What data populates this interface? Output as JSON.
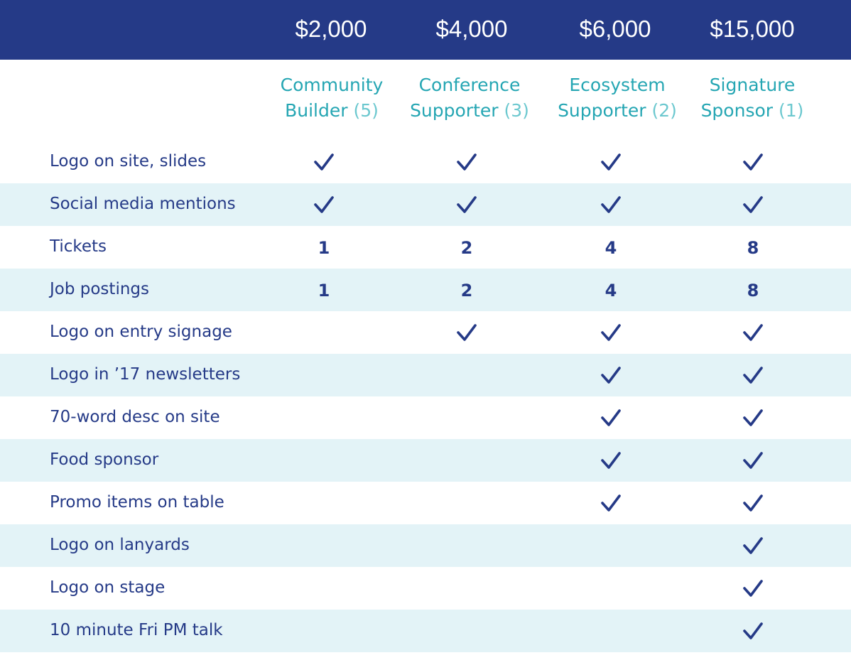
{
  "header": {
    "prices": [
      "$2,000",
      "$4,000",
      "$6,000",
      "$15,000"
    ],
    "tiers": [
      {
        "line1": "Community",
        "line2": "Builder",
        "count": "(5)"
      },
      {
        "line1": "Conference",
        "line2": "Supporter",
        "count": "(3)"
      },
      {
        "line1": "Ecosystem",
        "line2": "Supporter",
        "count": "(2)"
      },
      {
        "line1": "Signature",
        "line2": "Sponsor",
        "count": "(1)"
      }
    ]
  },
  "rows": [
    {
      "label": "Logo on site, slides",
      "cells": [
        "check",
        "check",
        "check",
        "check"
      ]
    },
    {
      "label": "Social media mentions",
      "cells": [
        "check",
        "check",
        "check",
        "check"
      ]
    },
    {
      "label": "Tickets",
      "cells": [
        "1",
        "2",
        "4",
        "8"
      ]
    },
    {
      "label": "Job postings",
      "cells": [
        "1",
        "2",
        "4",
        "8"
      ]
    },
    {
      "label": "Logo on entry signage",
      "cells": [
        "",
        "check",
        "check",
        "check"
      ]
    },
    {
      "label": "Logo in ’17 newsletters",
      "cells": [
        "",
        "",
        "check",
        "check"
      ]
    },
    {
      "label": "70-word desc on site",
      "cells": [
        "",
        "",
        "check",
        "check"
      ]
    },
    {
      "label": "Food sponsor",
      "cells": [
        "",
        "",
        "check",
        "check"
      ]
    },
    {
      "label": "Promo items on table",
      "cells": [
        "",
        "",
        "check",
        "check"
      ]
    },
    {
      "label": "Logo on lanyards",
      "cells": [
        "",
        "",
        "",
        "check"
      ]
    },
    {
      "label": "Logo on stage",
      "cells": [
        "",
        "",
        "",
        "check"
      ]
    },
    {
      "label": "10 minute Fri PM talk",
      "cells": [
        "",
        "",
        "",
        "check"
      ]
    }
  ],
  "icons": {
    "check": "check-icon"
  },
  "colors": {
    "header_bg": "#253a87",
    "tier_text": "#25a6b3",
    "tier_count": "#6cc8cf",
    "body_text": "#253a87",
    "row_shade": "#e3f3f7"
  }
}
